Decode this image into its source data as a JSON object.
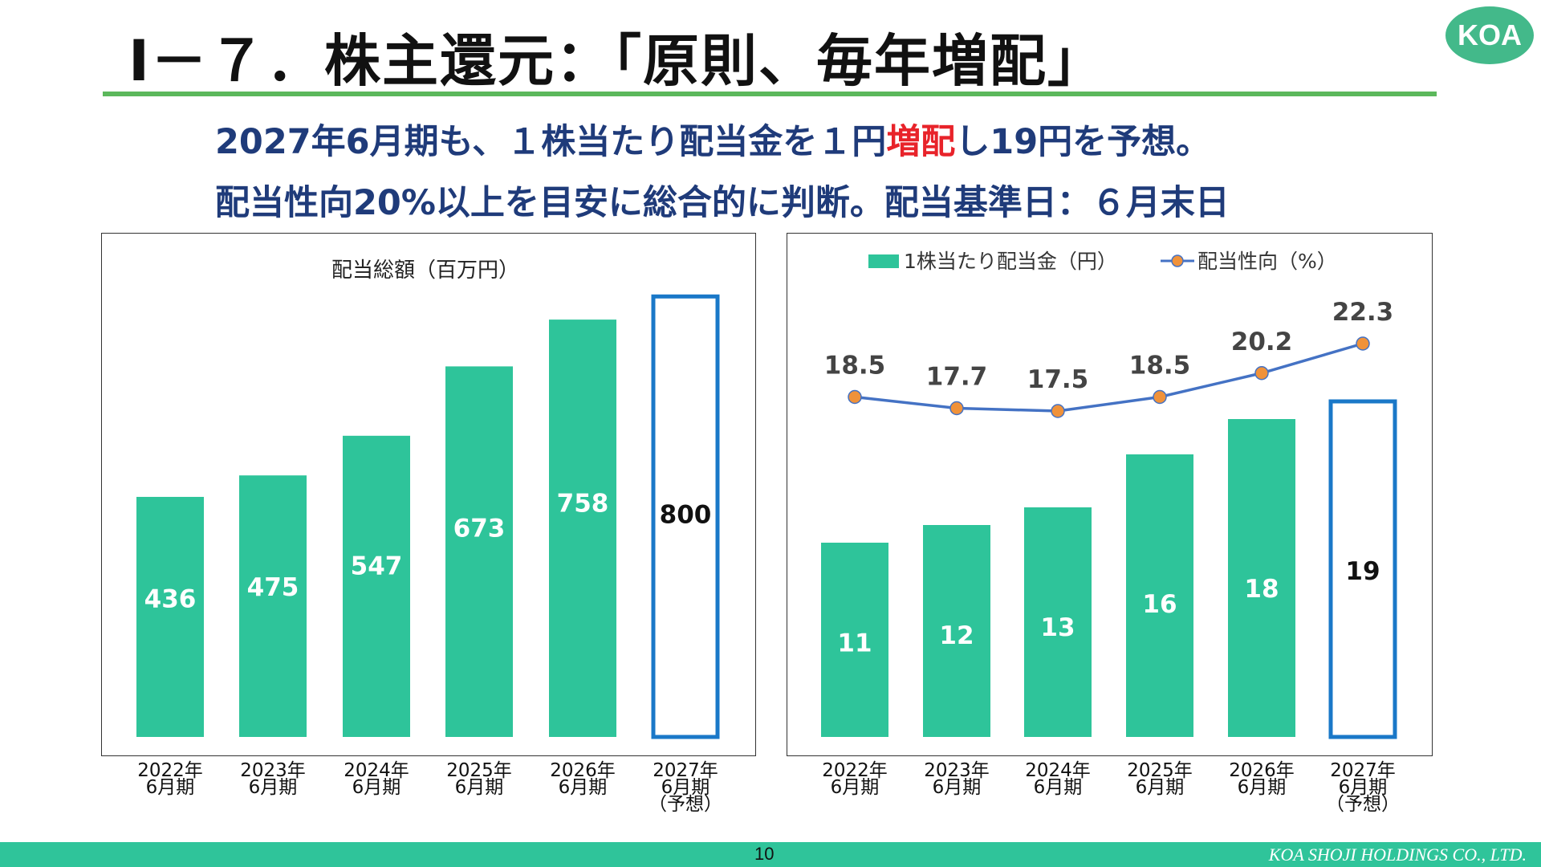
{
  "header": {
    "title": "Ⅰ－７．株主還元：「原則、毎年増配」",
    "logo_text": "KOA",
    "sub1_a": "2027年6月期も、１株当たり配当金を１円",
    "sub1_hl": "増配",
    "sub1_b": "し19円を予想。",
    "sub2": "配当性向20%以上を目安に総合的に判断。配当基準日：６月末日"
  },
  "footer": {
    "page": "10",
    "company": "KOA SHOJI HOLDINGS CO., LTD."
  },
  "colors": {
    "bar": "#2ec49a",
    "forecast_border": "#1a78c8",
    "line": "#4472c4",
    "marker": "#f0923a",
    "accent_red": "#e8232a"
  },
  "chart_data": [
    {
      "type": "bar",
      "title": "配当総額（百万円）",
      "categories": [
        "2022年\n6月期",
        "2023年\n6月期",
        "2024年\n6月期",
        "2025年\n6月期",
        "2026年\n6月期",
        "2027年\n6月期\n（予想）"
      ],
      "values": [
        436,
        475,
        547,
        673,
        758,
        800
      ],
      "forecast_index": 5,
      "ylim": [
        0,
        850
      ]
    },
    {
      "type": "bar+line",
      "legend": [
        "1株当たり配当金（円）",
        "配当性向（%）"
      ],
      "legend_position": "top",
      "categories": [
        "2022年\n6月期",
        "2023年\n6月期",
        "2024年\n6月期",
        "2025年\n6月期",
        "2026年\n6月期",
        "2027年\n6月期\n（予想）"
      ],
      "series": [
        {
          "name": "1株当たり配当金（円）",
          "type": "bar",
          "values": [
            11,
            12,
            13,
            16,
            18,
            19
          ]
        },
        {
          "name": "配当性向（%）",
          "type": "line",
          "values": [
            18.5,
            17.7,
            17.5,
            18.5,
            20.2,
            22.3
          ]
        }
      ],
      "forecast_index": 5,
      "bar_ylim": [
        0,
        20
      ],
      "line_ylim": [
        12.5,
        25
      ]
    }
  ]
}
